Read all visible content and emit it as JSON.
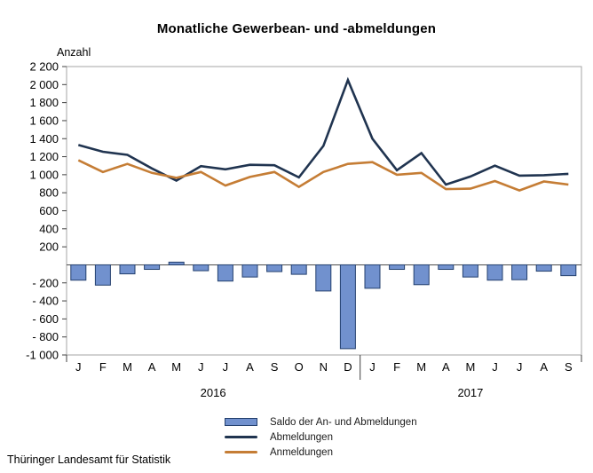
{
  "title": "Monatliche Gewerbean- und -abmeldungen",
  "y_axis_label": "Anzahl",
  "source": "Thüringer Landesamt für Statistik",
  "colors": {
    "saldo_bar_fill": "#7191ce",
    "saldo_bar_stroke": "#24406e",
    "abmeldungen_line": "#203450",
    "anmeldungen_line": "#c57d35",
    "frame": "#a6a6a6",
    "axis_text": "#000000",
    "zero_line": "#4d4d4d"
  },
  "legend": [
    {
      "label": "Saldo der An- und Abmeldungen",
      "type": "bar",
      "color": "#7191ce"
    },
    {
      "label": "Abmeldungen",
      "type": "line",
      "color": "#203450"
    },
    {
      "label": "Anmeldungen",
      "type": "line",
      "color": "#c57d35"
    }
  ],
  "chart_data": {
    "type": "combo (bar + line)",
    "title": "Monatliche Gewerbean- und -abmeldungen",
    "ylabel": "Anzahl",
    "ylim": [
      -1000,
      2200
    ],
    "grid": false,
    "legend_position": "bottom",
    "categories": [
      "J",
      "F",
      "M",
      "A",
      "M",
      "J",
      "J",
      "A",
      "S",
      "O",
      "N",
      "D",
      "J",
      "F",
      "M",
      "A",
      "M",
      "J",
      "J",
      "A",
      "S"
    ],
    "year_groups": [
      {
        "label": "2016",
        "start_index": 0,
        "end_index": 11
      },
      {
        "label": "2017",
        "start_index": 12,
        "end_index": 20
      }
    ],
    "y_ticks": [
      {
        "value": 2200,
        "label": "2 200"
      },
      {
        "value": 2000,
        "label": "2 000"
      },
      {
        "value": 1800,
        "label": "1 800"
      },
      {
        "value": 1600,
        "label": "1 600"
      },
      {
        "value": 1400,
        "label": "1 400"
      },
      {
        "value": 1200,
        "label": "1 200"
      },
      {
        "value": 1000,
        "label": "1 000"
      },
      {
        "value": 800,
        "label": "800"
      },
      {
        "value": 600,
        "label": "600"
      },
      {
        "value": 400,
        "label": "400"
      },
      {
        "value": 200,
        "label": "200"
      },
      {
        "value": -200,
        "label": "- 200"
      },
      {
        "value": -400,
        "label": "- 400"
      },
      {
        "value": -600,
        "label": "- 600"
      },
      {
        "value": -800,
        "label": "- 800"
      },
      {
        "value": -1000,
        "label": "-1 000"
      }
    ],
    "series": [
      {
        "name": "Saldo der An- und Abmeldungen",
        "type": "bar",
        "values": [
          -170,
          -225,
          -100,
          -50,
          30,
          -65,
          -180,
          -135,
          -75,
          -105,
          -290,
          -930,
          -260,
          -50,
          -220,
          -50,
          -135,
          -170,
          -165,
          -70,
          -120
        ]
      },
      {
        "name": "Abmeldungen",
        "type": "line",
        "values": [
          1330,
          1255,
          1220,
          1070,
          935,
          1095,
          1060,
          1110,
          1105,
          970,
          1320,
          2050,
          1400,
          1050,
          1240,
          890,
          980,
          1100,
          990,
          995,
          1010
        ]
      },
      {
        "name": "Anmeldungen",
        "type": "line",
        "values": [
          1160,
          1030,
          1120,
          1020,
          965,
          1030,
          880,
          975,
          1030,
          865,
          1030,
          1120,
          1140,
          1000,
          1020,
          840,
          845,
          930,
          825,
          925,
          890
        ]
      }
    ]
  }
}
